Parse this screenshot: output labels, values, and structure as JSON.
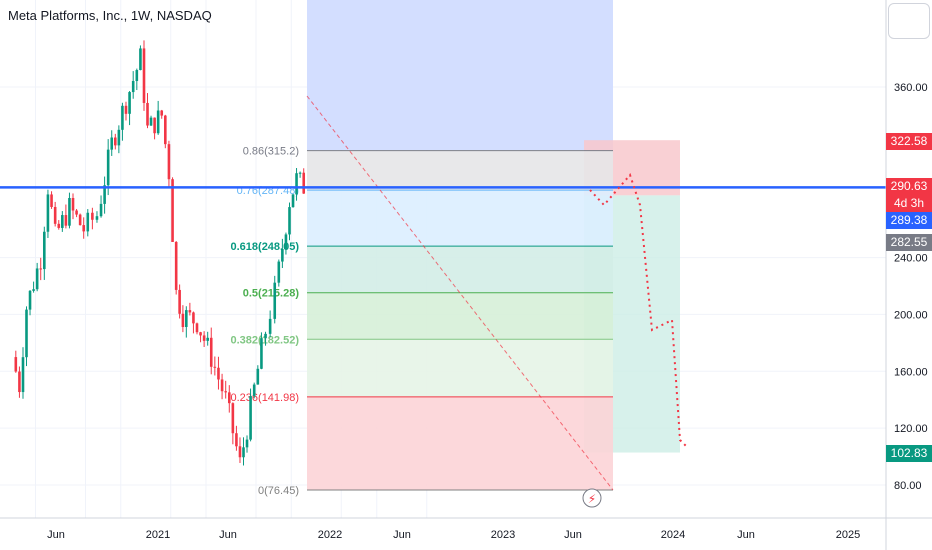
{
  "title": "Meta Platforms, Inc., 1W, NASDAQ",
  "colors": {
    "up": "#089981",
    "down": "#f23645",
    "blue_line": "#2962ff",
    "fib_0": "#808080",
    "fib_0236": "#f23645",
    "fib_0382": "#81c784",
    "fib_05": "#4caf50",
    "fib_0618": "#089981",
    "fib_076": "#64b5f6",
    "fib_086": "#787b86"
  },
  "price_axis": {
    "labels": [
      "360.00",
      "240.00",
      "200.00",
      "160.00",
      "120.00",
      "80.00"
    ]
  },
  "time_axis": {
    "labels": [
      "Jun",
      "2021",
      "Jun",
      "2022",
      "Jun",
      "2023",
      "Jun",
      "2024",
      "Jun",
      "2025"
    ]
  },
  "price_tags": [
    {
      "text": "322.58",
      "color": "#f23645"
    },
    {
      "text": "290.63",
      "color": "#f23645"
    },
    {
      "text": "4d 3h",
      "color": "#f23645"
    },
    {
      "text": "289.38",
      "color": "#2962ff"
    },
    {
      "text": "282.55",
      "color": "#787b86"
    },
    {
      "text": "102.83",
      "color": "#089981"
    }
  ],
  "chart_data": {
    "type": "candlestick",
    "title": "Meta Platforms, Inc., 1W, NASDAQ",
    "y_range": [
      58,
      412
    ],
    "x_range": [
      "2020-03",
      "2025-04"
    ],
    "fib_levels": [
      {
        "ratio": "0",
        "label": "0(76.45)",
        "price": 76.45
      },
      {
        "ratio": "0.236",
        "label": "0.236(141.98)",
        "price": 141.98
      },
      {
        "ratio": "0.382",
        "label": "0.382(182.52)",
        "price": 182.52
      },
      {
        "ratio": "0.5",
        "label": "0.5(215.28)",
        "price": 215.28
      },
      {
        "ratio": "0.618",
        "label": "0.618(248.05)",
        "price": 248.05
      },
      {
        "ratio": "0.76",
        "label": "0.76(287.48)",
        "price": 287.48
      },
      {
        "ratio": "0.86",
        "label": "0.86(315.2)",
        "price": 315.2
      }
    ],
    "horizontal_line": 289.38,
    "position": {
      "entry": 289.38,
      "stop": 322.58,
      "target": 102.83
    },
    "last_price": 290.63,
    "price_series": [
      {
        "date": "2020-03",
        "price": 170
      },
      {
        "date": "2020-04",
        "price": 150
      },
      {
        "date": "2020-05",
        "price": 205
      },
      {
        "date": "2020-07",
        "price": 240
      },
      {
        "date": "2020-08",
        "price": 290
      },
      {
        "date": "2020-09",
        "price": 255
      },
      {
        "date": "2020-11",
        "price": 275
      },
      {
        "date": "2021-01",
        "price": 260
      },
      {
        "date": "2021-03",
        "price": 270
      },
      {
        "date": "2021-05",
        "price": 320
      },
      {
        "date": "2021-07",
        "price": 350
      },
      {
        "date": "2021-09",
        "price": 380
      },
      {
        "date": "2021-10",
        "price": 330
      },
      {
        "date": "2021-12",
        "price": 340
      },
      {
        "date": "2022-01",
        "price": 300
      },
      {
        "date": "2022-02",
        "price": 215
      },
      {
        "date": "2022-03",
        "price": 200
      },
      {
        "date": "2022-05",
        "price": 195
      },
      {
        "date": "2022-07",
        "price": 170
      },
      {
        "date": "2022-09",
        "price": 140
      },
      {
        "date": "2022-11",
        "price": 95
      },
      {
        "date": "2022-12",
        "price": 120
      },
      {
        "date": "2023-02",
        "price": 175
      },
      {
        "date": "2023-04",
        "price": 215
      },
      {
        "date": "2023-06",
        "price": 280
      },
      {
        "date": "2023-07",
        "price": 295
      },
      {
        "date": "2023-08",
        "price": 290
      }
    ],
    "projection": [
      {
        "date": "2023-07",
        "price": 289
      },
      {
        "date": "2023-08",
        "price": 283
      },
      {
        "date": "2023-09",
        "price": 295
      },
      {
        "date": "2023-10",
        "price": 280
      },
      {
        "date": "2023-11",
        "price": 200
      },
      {
        "date": "2023-12",
        "price": 190
      },
      {
        "date": "2024-01",
        "price": 105
      },
      {
        "date": "2024-02",
        "price": 103
      }
    ]
  }
}
